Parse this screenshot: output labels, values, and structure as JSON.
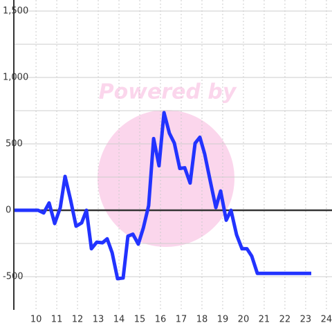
{
  "chart_data": {
    "type": "line",
    "watermark": "Powered by",
    "x": [
      8.93,
      10.1,
      10.37,
      10.63,
      10.9,
      11.17,
      11.4,
      11.67,
      11.93,
      12.2,
      12.43,
      12.67,
      12.93,
      13.2,
      13.43,
      13.67,
      13.93,
      14.2,
      14.43,
      14.67,
      14.93,
      15.17,
      15.43,
      15.67,
      15.93,
      16.17,
      16.43,
      16.67,
      16.93,
      17.17,
      17.43,
      17.67,
      17.9,
      18.13,
      18.4,
      18.67,
      18.9,
      19.17,
      19.4,
      19.67,
      19.93,
      20.17,
      20.4,
      20.67,
      23.27
    ],
    "series": [
      {
        "color": "#2233ff",
        "values": [
          0,
          0,
          -20,
          55,
          -100,
          20,
          255,
          75,
          -120,
          -95,
          0,
          -290,
          -240,
          -245,
          -215,
          -320,
          -515,
          -510,
          -195,
          -180,
          -255,
          -135,
          35,
          540,
          335,
          735,
          580,
          505,
          315,
          320,
          205,
          505,
          550,
          425,
          220,
          20,
          145,
          -75,
          0,
          -185,
          -290,
          -290,
          -345,
          -475,
          -475
        ]
      }
    ],
    "xlim": [
      8.93,
      24.27
    ],
    "xticks": [
      10,
      11,
      12,
      13,
      14,
      15,
      16,
      17,
      18,
      19,
      20,
      21,
      22,
      23,
      24
    ],
    "ylim": [
      -750,
      1500
    ],
    "yticks": [
      {
        "value": -500,
        "label": "-500"
      },
      0,
      500,
      {
        "value": 1000,
        "label": "1,000"
      },
      {
        "value": 1500,
        "label": "1,500"
      }
    ],
    "y_minor_ticks": [
      -250,
      250,
      750,
      1250
    ],
    "grid": true
  }
}
